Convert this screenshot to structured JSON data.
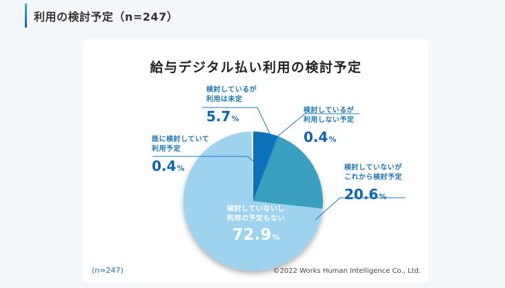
{
  "heading": {
    "text": "利用の検討予定（n=247）"
  },
  "chart_data": {
    "type": "pie",
    "title": "給与デジタル払い利用の検討予定",
    "slices": [
      {
        "label": "検討しているが利用は未定",
        "value": 5.7,
        "color": "#0b72b9"
      },
      {
        "label": "検討しているが利用しない予定",
        "value": 0.4,
        "color": "#2a8fc1"
      },
      {
        "label": "検討していないがこれから検討予定",
        "value": 20.6,
        "color": "#3a9fbf"
      },
      {
        "label": "検討していないし利用の予定もない",
        "value": 72.9,
        "color": "#9dd3ee"
      },
      {
        "label": "既に検討していて利用予定",
        "value": 0.4,
        "color": "#ffffff"
      }
    ],
    "start_angle": "12 o'clock, clockwise",
    "n": 247
  },
  "labels": {
    "undecided": {
      "line1": "検討しているが",
      "line2": "利用は未定",
      "value": "5.7",
      "unit": "%"
    },
    "not_use": {
      "line1": "検討しているが",
      "line2": "利用しない予定",
      "value": "0.4",
      "unit": "%"
    },
    "will_consider": {
      "line1": "検討していないが",
      "line2": "これから検討予定",
      "value": "20.6",
      "unit": "%"
    },
    "no_plan": {
      "line1": "検討していないし",
      "line2": "利用の予定もない",
      "value": "72.9",
      "unit": "%"
    },
    "already": {
      "line1": "既に検討していて",
      "line2": "利用予定",
      "value": "0.4",
      "unit": "%"
    }
  },
  "footer": {
    "sample": "(n=247)",
    "copyright": "©2022 Works Human Intelligence Co., Ltd."
  }
}
